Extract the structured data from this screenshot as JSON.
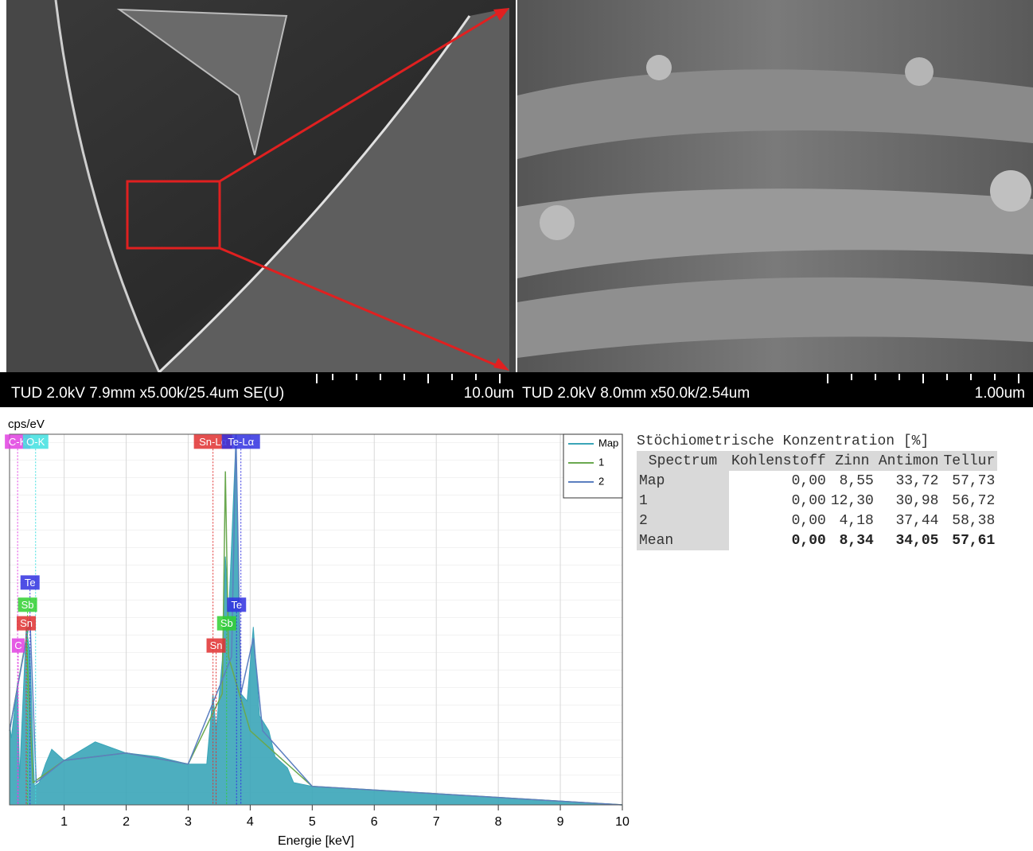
{
  "sem_images": [
    {
      "caption": "TUD 2.0kV 7.9mm x5.00k/25.4um SE(U)",
      "scale": "10.0um"
    },
    {
      "caption": "TUD 2.0kV 8.0mm x50.0k/2.54um",
      "scale": "1.00um"
    }
  ],
  "chart_data": {
    "type": "area",
    "ylabel": "cps/eV",
    "xlabel": "Energie [keV]",
    "xlim": [
      0.12,
      10
    ],
    "ylim": [
      0,
      100
    ],
    "xticks": [
      1,
      2,
      3,
      4,
      5,
      6,
      7,
      8,
      9,
      10
    ],
    "grid": true,
    "legend": "upper right",
    "series": [
      {
        "name": "Map",
        "color": "#3aa5b8",
        "x": [
          0.12,
          0.15,
          0.25,
          0.28,
          0.39,
          0.45,
          0.52,
          0.6,
          0.7,
          0.8,
          1.0,
          1.5,
          2.0,
          2.5,
          3.0,
          3.3,
          3.4,
          3.45,
          3.55,
          3.6,
          3.65,
          3.77,
          3.85,
          3.95,
          4.05,
          4.15,
          4.3,
          4.4,
          4.6,
          4.7,
          5.0,
          6,
          7,
          8,
          9,
          10
        ],
        "values": [
          22,
          18,
          33,
          7,
          48,
          41,
          5,
          6,
          11,
          15,
          12,
          17,
          14,
          13,
          11,
          11,
          30,
          20,
          39,
          67,
          50,
          99,
          30,
          28,
          48,
          24,
          20,
          13,
          10,
          6,
          5,
          4,
          3,
          2,
          1,
          0
        ]
      },
      {
        "name": "1",
        "color": "#6aa84f",
        "x": [
          0.12,
          0.39,
          0.5,
          1,
          2,
          3,
          3.55,
          3.6,
          3.65,
          4,
          5,
          10
        ],
        "values": [
          20,
          45,
          6,
          12,
          14,
          11,
          30,
          90,
          40,
          20,
          5,
          0
        ]
      },
      {
        "name": "2",
        "color": "#5b7fc0",
        "x": [
          0.12,
          0.45,
          0.55,
          1,
          2,
          3,
          3.7,
          3.77,
          3.85,
          4.05,
          4.2,
          5,
          10
        ],
        "values": [
          20,
          50,
          6,
          12,
          14,
          11,
          40,
          100,
          30,
          45,
          20,
          5,
          0
        ]
      }
    ],
    "annotations": [
      {
        "text": "C-K",
        "x": 0.25,
        "y": 98,
        "color": "#e040e0"
      },
      {
        "text": "O-K",
        "x": 0.54,
        "y": 98,
        "color": "#40e0e0"
      },
      {
        "text": "Sn-Lα",
        "x": 3.4,
        "y": 98,
        "color": "#e03030"
      },
      {
        "text": "Te-Lα",
        "x": 3.85,
        "y": 98,
        "color": "#3030e0"
      },
      {
        "text": "Te",
        "x": 0.45,
        "y": 60,
        "color": "#3030e0"
      },
      {
        "text": "Sb",
        "x": 0.41,
        "y": 54,
        "color": "#30d030"
      },
      {
        "text": "Sn",
        "x": 0.39,
        "y": 49,
        "color": "#e03030"
      },
      {
        "text": "C",
        "x": 0.26,
        "y": 43,
        "color": "#e040e0"
      },
      {
        "text": "Te",
        "x": 3.78,
        "y": 54,
        "color": "#3030e0"
      },
      {
        "text": "Sb",
        "x": 3.62,
        "y": 49,
        "color": "#30d030"
      },
      {
        "text": "Sn",
        "x": 3.45,
        "y": 43,
        "color": "#e03030"
      }
    ]
  },
  "table": {
    "title": "Stöchiometrische Konzentration [%]",
    "header": [
      "Spectrum",
      "Kohlenstoff",
      "Zinn",
      "Antimon",
      "Tellur"
    ],
    "rows": [
      [
        "Map",
        "0,00",
        "8,55",
        "33,72",
        "57,73"
      ],
      [
        "1",
        "0,00",
        "12,30",
        "30,98",
        "56,72"
      ],
      [
        "2",
        "0,00",
        "4,18",
        "37,44",
        "58,38"
      ],
      [
        "Mean",
        "0,00",
        "8,34",
        "34,05",
        "57,61"
      ]
    ]
  }
}
